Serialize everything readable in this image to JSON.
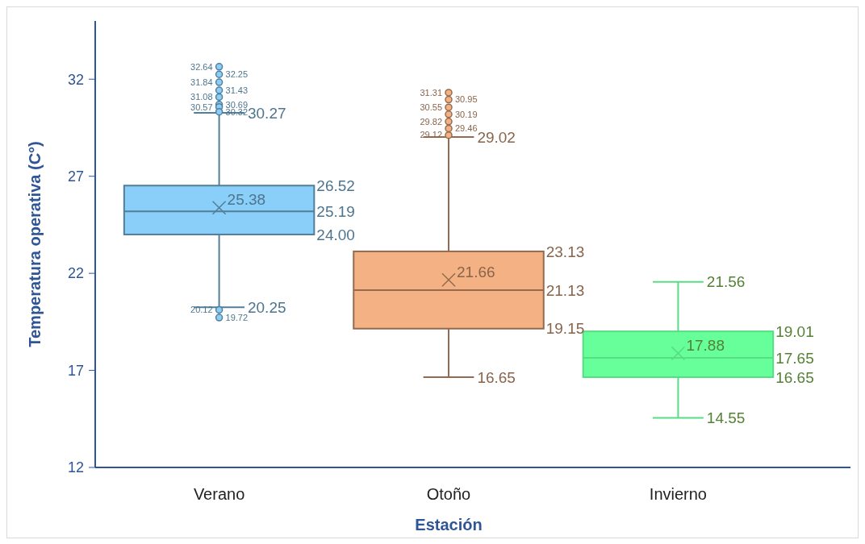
{
  "chart_data": {
    "type": "box",
    "xlabel": "Estación",
    "ylabel": "Temperatura operativa (C°)",
    "categories": [
      "Verano",
      "Otoño",
      "Invierno"
    ],
    "colors": [
      "#89cff9",
      "#f4b183",
      "#66ff99"
    ],
    "boxes": [
      {
        "low": 20.25,
        "q1": 24.0,
        "median": 25.19,
        "q3": 26.52,
        "high": 30.27,
        "mean": 25.38,
        "outliers": [
          32.64,
          32.25,
          31.84,
          31.43,
          31.08,
          30.69,
          30.57,
          30.32,
          20.12,
          19.72
        ]
      },
      {
        "low": 16.65,
        "q1": 19.15,
        "median": 21.13,
        "q3": 23.13,
        "high": 29.02,
        "mean": 21.66,
        "outliers": [
          31.31,
          30.95,
          30.55,
          30.19,
          29.82,
          29.46,
          29.12
        ]
      },
      {
        "low": 14.55,
        "q1": 16.65,
        "median": 17.65,
        "q3": 19.01,
        "high": 21.56,
        "mean": 17.88
      }
    ],
    "annotations": [
      "26.52",
      "25.19",
      "24.00",
      "30.27",
      "20.25",
      "25.38",
      "32.64",
      "32.25",
      "31.84",
      "31.43",
      "31.08",
      "30.69",
      "30.57",
      "30.32",
      "20.12",
      "19.72",
      "23.13",
      "21.13",
      "19.15",
      "29.02",
      "16.65",
      "21.66",
      "31.31",
      "30.95",
      "30.55",
      "30.19",
      "29.82",
      "29.46",
      "29.12",
      "19.01",
      "17.65",
      "16.65",
      "21.56",
      "14.55",
      "17.88"
    ],
    "ylim": [
      12,
      35
    ],
    "yticks": [
      12,
      17,
      22,
      27,
      32
    ],
    "marker": "cross",
    "grid": false
  }
}
